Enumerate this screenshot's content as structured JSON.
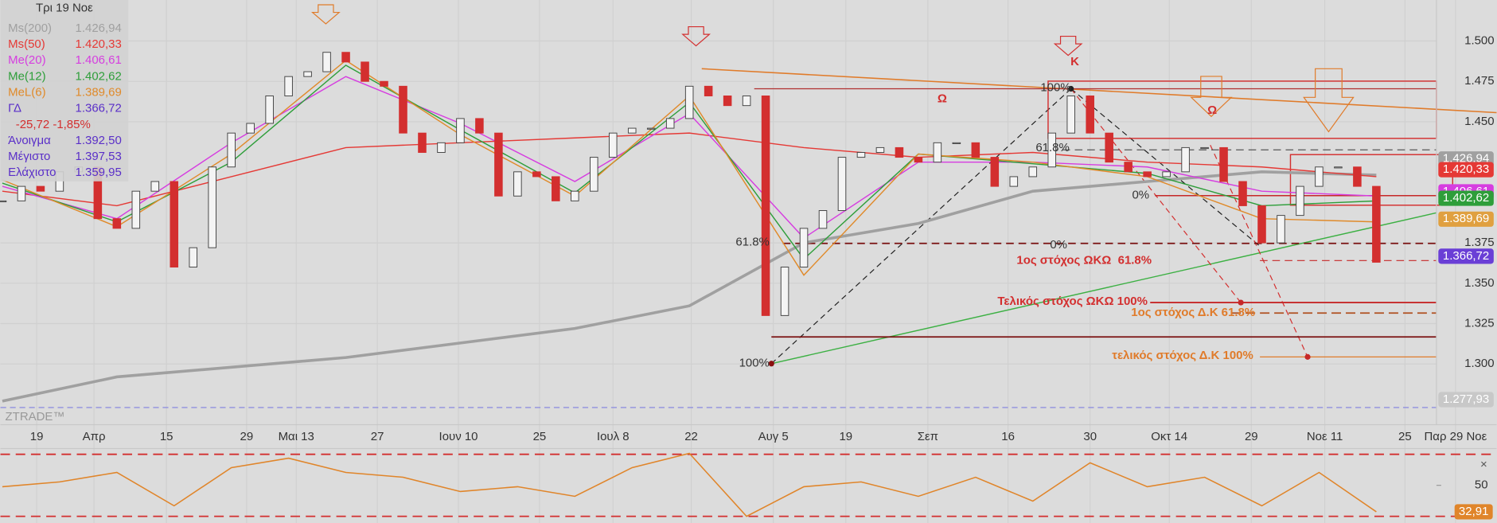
{
  "chart_data": [
    {
      "type": "candlestick",
      "values": [
        1.401,
        1.41,
        1.407,
        1.419,
        1.422,
        1.39,
        1.384,
        1.407,
        1.413,
        1.36,
        1.372,
        1.422,
        1.443,
        1.449,
        1.466,
        1.478,
        1.481,
        1.493,
        1.487,
        1.475,
        1.472,
        1.443,
        1.431,
        1.437,
        1.452,
        1.443,
        1.404,
        1.419,
        1.416,
        1.401,
        1.407,
        1.428,
        1.443,
        1.446,
        1.446,
        1.452,
        1.472,
        1.466,
        1.46,
        1.466,
        1.33,
        1.36,
        1.384,
        1.395,
        1.428,
        1.431,
        1.434,
        1.428,
        1.425,
        1.437,
        1.437,
        1.428,
        1.41,
        1.416,
        1.422,
        1.443,
        1.466,
        1.443,
        1.425,
        1.419,
        1.416,
        1.419,
        1.434,
        1.434,
        1.413,
        1.398,
        1.375,
        1.392,
        1.41,
        1.422,
        1.422,
        1.41,
        1.363
      ],
      "up_color": "#f4f4f4",
      "down_color": "#d32f2f",
      "series": [
        {
          "name": "Ms(200)",
          "color": "#a0a0a0",
          "label": "1.426,94",
          "values": [
            1.277,
            1.292,
            1.298,
            1.304,
            1.313,
            1.322,
            1.336,
            1.375,
            1.387,
            1.407,
            1.413,
            1.419,
            1.417
          ]
        },
        {
          "name": "Ms(50)",
          "color": "#e53935",
          "label": "1.420,33",
          "values": [
            1.407,
            1.398,
            1.416,
            1.434,
            1.437,
            1.44,
            1.443,
            1.434,
            1.428,
            1.431,
            1.425,
            1.422,
            1.416
          ]
        },
        {
          "name": "Me(20)",
          "color": "#d63de0",
          "label": "1.406,61",
          "values": [
            1.41,
            1.39,
            1.437,
            1.478,
            1.449,
            1.413,
            1.455,
            1.378,
            1.425,
            1.425,
            1.422,
            1.407,
            1.404
          ]
        },
        {
          "name": "Me(12)",
          "color": "#2e9e3a",
          "label": "1.402,62",
          "values": [
            1.412,
            1.388,
            1.425,
            1.485,
            1.445,
            1.406,
            1.462,
            1.365,
            1.43,
            1.424,
            1.418,
            1.398,
            1.401
          ]
        },
        {
          "name": "MeL(6)",
          "color": "#e08a2a",
          "label": "1.389,69",
          "values": [
            1.414,
            1.385,
            1.43,
            1.488,
            1.442,
            1.404,
            1.466,
            1.355,
            1.43,
            1.425,
            1.416,
            1.39,
            1.388
          ]
        }
      ],
      "legend": {
        "date": "Τρι 19 Νοε",
        "rows": [
          {
            "name": "ΓΔ",
            "value": "1.366,72",
            "color": "#5a2fc8"
          },
          {
            "change": "-25,72 -1,85%",
            "color": "#d32f2f"
          },
          {
            "name": "Άνοιγμα",
            "value": "1.392,50",
            "color": "#5a2fc8"
          },
          {
            "name": "Μέγιστο",
            "value": "1.397,53",
            "color": "#5a2fc8"
          },
          {
            "name": "Ελάχιστο",
            "value": "1.359,95",
            "color": "#5a2fc8"
          }
        ]
      },
      "ylim": [
        1.2624,
        1.5254
      ],
      "yticks": [
        {
          "value": 1.5,
          "label": "1.500"
        },
        {
          "value": 1.475,
          "label": "1.475"
        },
        {
          "value": 1.45,
          "label": "1.450"
        },
        {
          "value": 1.375,
          "label": "1.375"
        },
        {
          "value": 1.35,
          "label": "1.350"
        },
        {
          "value": 1.325,
          "label": "1.325"
        },
        {
          "value": 1.3,
          "label": "1.300"
        }
      ],
      "price_tags": [
        {
          "value": 1.42694,
          "label": "1.426,94",
          "color": "#a0a0a0"
        },
        {
          "value": 1.42033,
          "label": "1.420,33",
          "color": "#e53935"
        },
        {
          "value": 1.40661,
          "label": "1.406,61",
          "color": "#d63de0"
        },
        {
          "value": 1.40262,
          "label": "1.402,62",
          "color": "#2e9e3a"
        },
        {
          "value": 1.38969,
          "label": "1.389,69",
          "color": "#e0a040"
        },
        {
          "value": 1.36672,
          "label": "1.366,72",
          "color": "#6a3fd6"
        },
        {
          "value": 1.27793,
          "label": "1.277,93",
          "color": "#c8c8c8"
        }
      ],
      "xlabels": [
        "19",
        "Απρ",
        "15",
        "29",
        "Μαι 13",
        "27",
        "Ιουν 10",
        "25",
        "Ιουλ 8",
        "22",
        "Αυγ 5",
        "19",
        "Σεπ",
        "16",
        "30",
        "Οκτ 14",
        "29",
        "Νοε 11",
        "25",
        "Παρ 29 Νοε"
      ],
      "annotations": [
        "100%",
        "61.8%",
        "0%",
        "0%",
        "61.8%",
        "100%",
        "Ω",
        "Ω",
        "Κ",
        "1ος στόχος ΩΚΩ  61.8%",
        "Τελικός στόχος ΩΚΩ 100%",
        "1ος στόχος Δ.Κ 61.8%",
        "τελικός στόχος Δ.Κ 100%",
        "ZTRADE™"
      ]
    },
    {
      "type": "line",
      "color": "#e0852a",
      "values": [
        49.1,
        52.2,
        58.3,
        36.8,
        61.4,
        67.5,
        58.3,
        55.2,
        46.0,
        49.1,
        42.9,
        61.4,
        70.6,
        30.0,
        49.1,
        52.2,
        42.9,
        55.2,
        39.8,
        64.5,
        49.1,
        55.2,
        36.8,
        58.3,
        32.91
      ],
      "value_labels": [
        null,
        null,
        null,
        null,
        null,
        null,
        null,
        null,
        null,
        null,
        null,
        null,
        null,
        null,
        null,
        null,
        null,
        null,
        null,
        null,
        null,
        null,
        null,
        null,
        "32,91"
      ],
      "ylim": [
        25.7,
        73.7
      ],
      "yticks": [
        50
      ],
      "levels": [
        30,
        70
      ]
    }
  ]
}
